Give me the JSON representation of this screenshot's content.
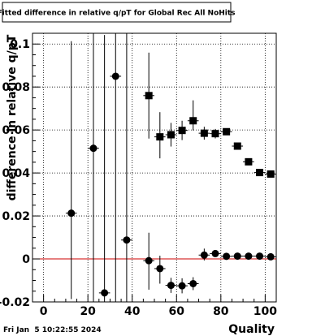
{
  "title": "Fitted difference in relative q/pT for Global Rec All NoHits",
  "timestamp": "Fri Jan  5 10:22:55 2024",
  "colors": {
    "reference_line": "#cc0000",
    "marker": "#000000",
    "background": "#ffffff"
  },
  "chart_data": {
    "type": "scatter",
    "title": "Fitted difference in relative q/pT for Global Rec All NoHits",
    "xlabel": "Quality",
    "ylabel": "difference in relative q/pT",
    "xlim": [
      -5,
      105
    ],
    "ylim": [
      -0.02,
      0.105
    ],
    "xticks": [
      0,
      20,
      40,
      60,
      80,
      100
    ],
    "xtick_labels": [
      "0",
      "20",
      "40",
      "60",
      "80",
      "100"
    ],
    "yticks": [
      -0.02,
      0,
      0.02,
      0.04,
      0.06,
      0.08,
      0.1
    ],
    "ytick_labels": [
      "-0.02",
      "0",
      "0.02",
      "0.04",
      "0.06",
      "0.08",
      "0.1"
    ],
    "grid": true,
    "reference_line_y": 0,
    "series": [
      {
        "marker": "circle",
        "points": [
          {
            "x": 12.5,
            "y": 0.0213,
            "yerr_low": 0.04,
            "yerr_high": 0.08
          },
          {
            "x": 22.5,
            "y": 0.0515,
            "yerr_low": 0.08,
            "yerr_high": 0.08
          },
          {
            "x": 27.5,
            "y": -0.0158,
            "yerr_low": 0.01,
            "yerr_high": 0.12
          },
          {
            "x": 32.5,
            "y": 0.085,
            "yerr_low": 0.12,
            "yerr_high": 0.05
          },
          {
            "x": 37.5,
            "y": 0.0088,
            "yerr_low": 0.04,
            "yerr_high": 0.1
          },
          {
            "x": 47.5,
            "y": -0.0008,
            "yerr_low": 0.0135,
            "yerr_high": 0.013
          },
          {
            "x": 52.5,
            "y": -0.0045,
            "yerr_low": 0.007,
            "yerr_high": 0.006
          },
          {
            "x": 57.5,
            "y": -0.0123,
            "yerr_low": 0.0035,
            "yerr_high": 0.0035
          },
          {
            "x": 62.5,
            "y": -0.0125,
            "yerr_low": 0.0035,
            "yerr_high": 0.0035
          },
          {
            "x": 67.5,
            "y": -0.0115,
            "yerr_low": 0.003,
            "yerr_high": 0.003
          },
          {
            "x": 72.5,
            "y": 0.0018,
            "yerr_low": 0.0025,
            "yerr_high": 0.003
          },
          {
            "x": 77.5,
            "y": 0.0025,
            "yerr_low": 0.0015,
            "yerr_high": 0.0015
          },
          {
            "x": 82.5,
            "y": 0.0012,
            "yerr_low": 0.0008,
            "yerr_high": 0.0008
          },
          {
            "x": 87.5,
            "y": 0.0013,
            "yerr_low": 0.0007,
            "yerr_high": 0.0007
          },
          {
            "x": 92.5,
            "y": 0.0013,
            "yerr_low": 0.0007,
            "yerr_high": 0.0007
          },
          {
            "x": 97.5,
            "y": 0.0013,
            "yerr_low": 0.0007,
            "yerr_high": 0.0007
          },
          {
            "x": 102.5,
            "y": 0.001,
            "yerr_low": 0.0007,
            "yerr_high": 0.0007
          }
        ]
      },
      {
        "marker": "square",
        "points": [
          {
            "x": 47.5,
            "y": 0.076,
            "yerr_low": 0.02,
            "yerr_high": 0.02
          },
          {
            "x": 52.5,
            "y": 0.0568,
            "yerr_low": 0.01,
            "yerr_high": 0.0115
          },
          {
            "x": 57.5,
            "y": 0.0578,
            "yerr_low": 0.0055,
            "yerr_high": 0.0055
          },
          {
            "x": 62.5,
            "y": 0.0598,
            "yerr_low": 0.0045,
            "yerr_high": 0.0045
          },
          {
            "x": 67.5,
            "y": 0.0643,
            "yerr_low": 0.0045,
            "yerr_high": 0.0095
          },
          {
            "x": 72.5,
            "y": 0.0585,
            "yerr_low": 0.003,
            "yerr_high": 0.003
          },
          {
            "x": 77.5,
            "y": 0.0583,
            "yerr_low": 0.0022,
            "yerr_high": 0.0022
          },
          {
            "x": 82.5,
            "y": 0.0592,
            "yerr_low": 0.0012,
            "yerr_high": 0.0012
          },
          {
            "x": 87.5,
            "y": 0.0525,
            "yerr_low": 0.0012,
            "yerr_high": 0.0012
          },
          {
            "x": 92.5,
            "y": 0.0452,
            "yerr_low": 0.0012,
            "yerr_high": 0.0012
          },
          {
            "x": 97.5,
            "y": 0.0402,
            "yerr_low": 0.0012,
            "yerr_high": 0.0012
          },
          {
            "x": 102.5,
            "y": 0.0395,
            "yerr_low": 0.0012,
            "yerr_high": 0.0012
          }
        ]
      }
    ]
  }
}
